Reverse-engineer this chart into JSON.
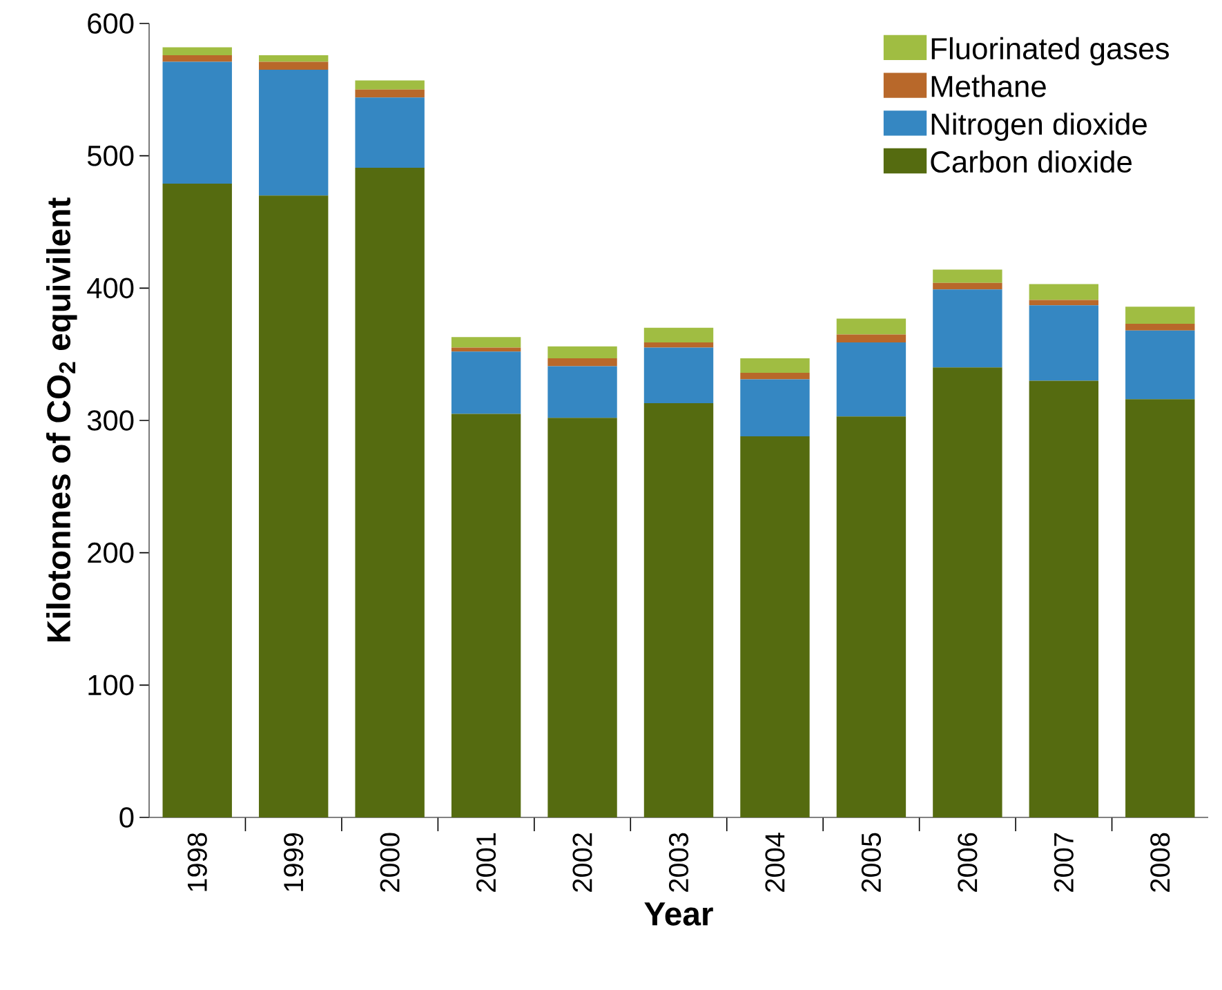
{
  "chart_data": {
    "type": "bar",
    "stacked": true,
    "xlabel": "Year",
    "ylabel": "Kilotonnes of CO$_{2}$ equivilent",
    "categories": [
      "1998",
      "1999",
      "2000",
      "2001",
      "2002",
      "2003",
      "2004",
      "2005",
      "2006",
      "2007",
      "2008"
    ],
    "series": [
      {
        "name": "Carbon dioxide",
        "color": "#556b10",
        "values": [
          479,
          470,
          491,
          305,
          302,
          313,
          288,
          303,
          340,
          330,
          316
        ]
      },
      {
        "name": "Nitrogen dioxide",
        "color": "#3587c2",
        "values": [
          92,
          95,
          53,
          47,
          39,
          42,
          43,
          56,
          59,
          57,
          52
        ]
      },
      {
        "name": "Methane",
        "color": "#b8682a",
        "values": [
          5,
          6,
          6,
          3,
          6,
          4,
          5,
          6,
          5,
          4,
          5
        ]
      },
      {
        "name": "Fluorinated gases",
        "color": "#a0bd42",
        "values": [
          6,
          5,
          7,
          8,
          9,
          11,
          11,
          12,
          10,
          12,
          13
        ]
      }
    ],
    "ylim": [
      0,
      600
    ],
    "yticks": [
      0,
      100,
      200,
      300,
      400,
      500,
      600
    ],
    "grid": false,
    "legend": "top right"
  }
}
